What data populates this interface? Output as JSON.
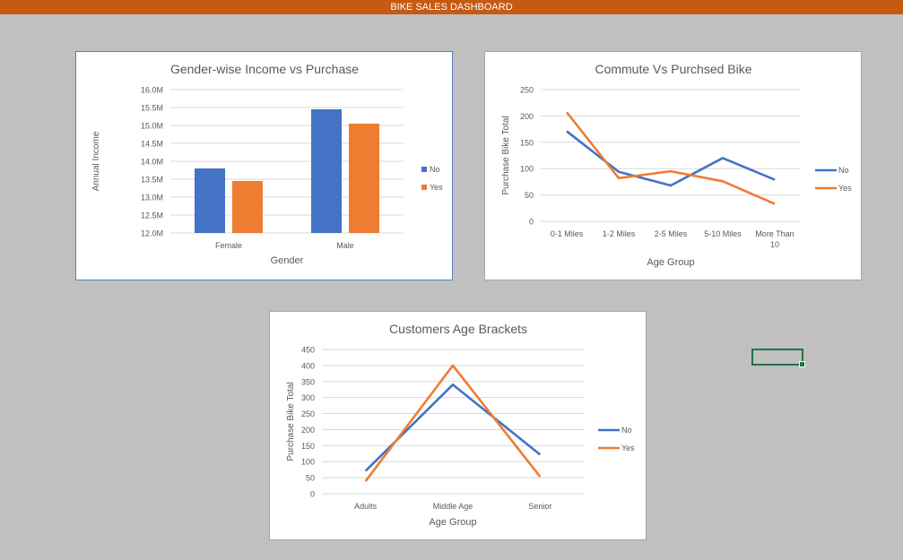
{
  "header": {
    "title": "BIKE SALES DASHBOARD"
  },
  "colors": {
    "no": "#4472c4",
    "yes": "#ed7d31",
    "header_bg": "#c55a11",
    "grid": "#d9d9d9",
    "text": "#595959"
  },
  "chart_data": [
    {
      "type": "bar",
      "title": "Gender-wise Income vs Purchase",
      "xlabel": "Gender",
      "ylabel": "Annual Income",
      "categories": [
        "Female",
        "Male"
      ],
      "series": [
        {
          "name": "No",
          "values": [
            13.8,
            15.45
          ]
        },
        {
          "name": "Yes",
          "values": [
            13.45,
            15.05
          ]
        }
      ],
      "ylim": [
        12.0,
        16.0
      ],
      "yticks": [
        "12.0M",
        "12.5M",
        "13.0M",
        "13.5M",
        "14.0M",
        "14.5M",
        "15.0M",
        "15.5M",
        "16.0M"
      ],
      "legend": "right",
      "grid": true
    },
    {
      "type": "line",
      "title": "Commute Vs Purchsed Bike",
      "xlabel": "Age Group",
      "ylabel": "Purchase Bike Total",
      "categories": [
        "0-1 Miles",
        "1-2 Miles",
        "2-5 Miles",
        "5-10 Miles",
        "More Than 10"
      ],
      "series": [
        {
          "name": "No",
          "values": [
            171,
            94,
            68,
            120,
            79
          ]
        },
        {
          "name": "Yes",
          "values": [
            207,
            82,
            95,
            76,
            33
          ]
        }
      ],
      "ylim": [
        0,
        250
      ],
      "yticks": [
        "0",
        "50",
        "100",
        "150",
        "200",
        "250"
      ],
      "legend": "right",
      "grid": true
    },
    {
      "type": "line",
      "title": "Customers Age Brackets",
      "xlabel": "Age Group",
      "ylabel": "Purchase Bike Total",
      "categories": [
        "Adults",
        "Middle Age",
        "Senior"
      ],
      "series": [
        {
          "name": "No",
          "values": [
            71,
            340,
            122
          ]
        },
        {
          "name": "Yes",
          "values": [
            39,
            400,
            53
          ]
        }
      ],
      "ylim": [
        0,
        450
      ],
      "yticks": [
        "0",
        "50",
        "100",
        "150",
        "200",
        "250",
        "300",
        "350",
        "400",
        "450"
      ],
      "legend": "right",
      "grid": true
    }
  ]
}
